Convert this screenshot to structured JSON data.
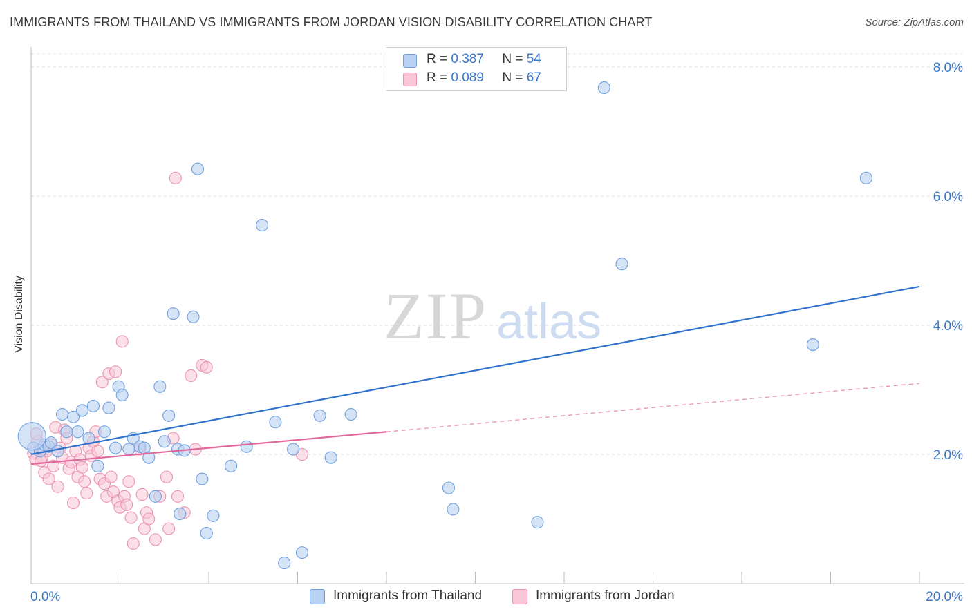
{
  "chart_data": {
    "type": "scatter",
    "title": "IMMIGRANTS FROM THAILAND VS IMMIGRANTS FROM JORDAN VISION DISABILITY CORRELATION CHART",
    "source": "Source: ZipAtlas.com",
    "watermark": {
      "zip": "ZIP",
      "atlas": "atlas"
    },
    "ylabel": "Vision Disability",
    "xlim": [
      0,
      20
    ],
    "ylim": [
      0,
      8.2
    ],
    "x_tick_labels": [
      "0.0%",
      "20.0%"
    ],
    "y_ticks": [
      2,
      4,
      6,
      8
    ],
    "y_tick_labels": [
      "2.0%",
      "4.0%",
      "6.0%",
      "8.0%"
    ],
    "legend": [
      {
        "r_label": "R =",
        "r_value": "0.387",
        "n_label": "N =",
        "n_value": "54"
      },
      {
        "r_label": "R =",
        "r_value": "0.089",
        "n_label": "N =",
        "n_value": "67"
      }
    ],
    "series": [
      {
        "name": "Immigrants from Thailand",
        "color": "#6fa0de",
        "fill": "#b9d1f2",
        "trend": {
          "x": [
            0,
            20
          ],
          "y": [
            2.0,
            4.6
          ],
          "color": "#2f72cc"
        },
        "points": [
          [
            0.05,
            2.1
          ],
          [
            0.2,
            2.05
          ],
          [
            0.3,
            2.15
          ],
          [
            0.4,
            2.12
          ],
          [
            0.45,
            2.18
          ],
          [
            0.6,
            2.05
          ],
          [
            0.7,
            2.62
          ],
          [
            0.8,
            2.35
          ],
          [
            0.95,
            2.58
          ],
          [
            1.05,
            2.35
          ],
          [
            1.15,
            2.68
          ],
          [
            1.3,
            2.25
          ],
          [
            1.4,
            2.75
          ],
          [
            1.5,
            1.82
          ],
          [
            1.65,
            2.35
          ],
          [
            1.75,
            2.72
          ],
          [
            1.9,
            2.1
          ],
          [
            1.97,
            3.05
          ],
          [
            2.05,
            2.92
          ],
          [
            2.2,
            2.08
          ],
          [
            2.3,
            2.25
          ],
          [
            2.45,
            2.12
          ],
          [
            2.55,
            2.1
          ],
          [
            2.65,
            1.95
          ],
          [
            2.8,
            1.35
          ],
          [
            2.9,
            3.05
          ],
          [
            3.0,
            2.2
          ],
          [
            3.1,
            2.6
          ],
          [
            3.2,
            4.18
          ],
          [
            3.3,
            2.08
          ],
          [
            3.35,
            1.08
          ],
          [
            3.45,
            2.06
          ],
          [
            3.65,
            4.13
          ],
          [
            3.75,
            6.42
          ],
          [
            3.85,
            1.62
          ],
          [
            3.95,
            0.78
          ],
          [
            4.1,
            1.05
          ],
          [
            4.5,
            1.82
          ],
          [
            4.85,
            2.12
          ],
          [
            5.2,
            5.55
          ],
          [
            5.5,
            2.5
          ],
          [
            5.7,
            0.32
          ],
          [
            5.9,
            2.08
          ],
          [
            6.1,
            0.48
          ],
          [
            6.5,
            2.6
          ],
          [
            6.75,
            1.95
          ],
          [
            7.2,
            2.62
          ],
          [
            9.4,
            1.48
          ],
          [
            9.5,
            1.15
          ],
          [
            11.4,
            0.95
          ],
          [
            12.9,
            7.68
          ],
          [
            13.3,
            4.95
          ],
          [
            17.6,
            3.7
          ],
          [
            18.8,
            6.28
          ]
        ],
        "big_point": [
          0.02,
          2.28
        ]
      },
      {
        "name": "Immigrants from Jordan",
        "color": "#ec93b2",
        "fill": "#f8c6d6",
        "trend": {
          "x": [
            0,
            8
          ],
          "y": [
            1.85,
            2.35
          ],
          "color": "#e0689a"
        },
        "trend_ext": {
          "x": [
            8,
            20
          ],
          "y": [
            2.35,
            3.1
          ],
          "color": "#e88aaa"
        },
        "points": [
          [
            0.05,
            2.02
          ],
          [
            0.1,
            1.92
          ],
          [
            0.15,
            2.2
          ],
          [
            0.2,
            2.08
          ],
          [
            0.25,
            1.95
          ],
          [
            0.3,
            1.72
          ],
          [
            0.35,
            2.05
          ],
          [
            0.4,
            1.62
          ],
          [
            0.45,
            2.15
          ],
          [
            0.5,
            1.82
          ],
          [
            0.55,
            2.42
          ],
          [
            0.6,
            1.5
          ],
          [
            0.65,
            2.1
          ],
          [
            0.7,
            1.95
          ],
          [
            0.75,
            2.38
          ],
          [
            0.8,
            2.25
          ],
          [
            0.85,
            1.78
          ],
          [
            0.9,
            1.88
          ],
          [
            0.95,
            1.25
          ],
          [
            1.0,
            2.05
          ],
          [
            1.05,
            1.65
          ],
          [
            1.1,
            1.92
          ],
          [
            1.15,
            1.8
          ],
          [
            1.2,
            1.58
          ],
          [
            1.25,
            1.4
          ],
          [
            1.3,
            2.1
          ],
          [
            1.35,
            1.98
          ],
          [
            1.4,
            2.2
          ],
          [
            1.45,
            2.35
          ],
          [
            1.5,
            2.05
          ],
          [
            1.55,
            1.62
          ],
          [
            1.6,
            3.12
          ],
          [
            1.65,
            1.55
          ],
          [
            1.7,
            1.35
          ],
          [
            1.75,
            3.25
          ],
          [
            1.8,
            1.65
          ],
          [
            1.85,
            1.42
          ],
          [
            1.9,
            3.28
          ],
          [
            1.95,
            1.28
          ],
          [
            2.0,
            1.18
          ],
          [
            2.05,
            3.75
          ],
          [
            2.1,
            1.35
          ],
          [
            2.15,
            1.22
          ],
          [
            2.2,
            1.58
          ],
          [
            2.25,
            1.02
          ],
          [
            2.3,
            0.62
          ],
          [
            2.45,
            2.08
          ],
          [
            2.5,
            1.38
          ],
          [
            2.55,
            0.85
          ],
          [
            2.6,
            1.1
          ],
          [
            2.65,
            1.0
          ],
          [
            2.8,
            0.68
          ],
          [
            2.9,
            1.35
          ],
          [
            3.05,
            1.65
          ],
          [
            3.1,
            0.85
          ],
          [
            3.2,
            2.25
          ],
          [
            3.25,
            6.28
          ],
          [
            3.3,
            1.35
          ],
          [
            3.45,
            1.1
          ],
          [
            3.6,
            3.22
          ],
          [
            3.7,
            2.08
          ],
          [
            3.85,
            3.38
          ],
          [
            3.95,
            3.35
          ],
          [
            6.1,
            2.0
          ],
          [
            0.12,
            2.32
          ],
          [
            0.22,
            1.9
          ],
          [
            0.32,
            2.12
          ]
        ]
      }
    ]
  }
}
